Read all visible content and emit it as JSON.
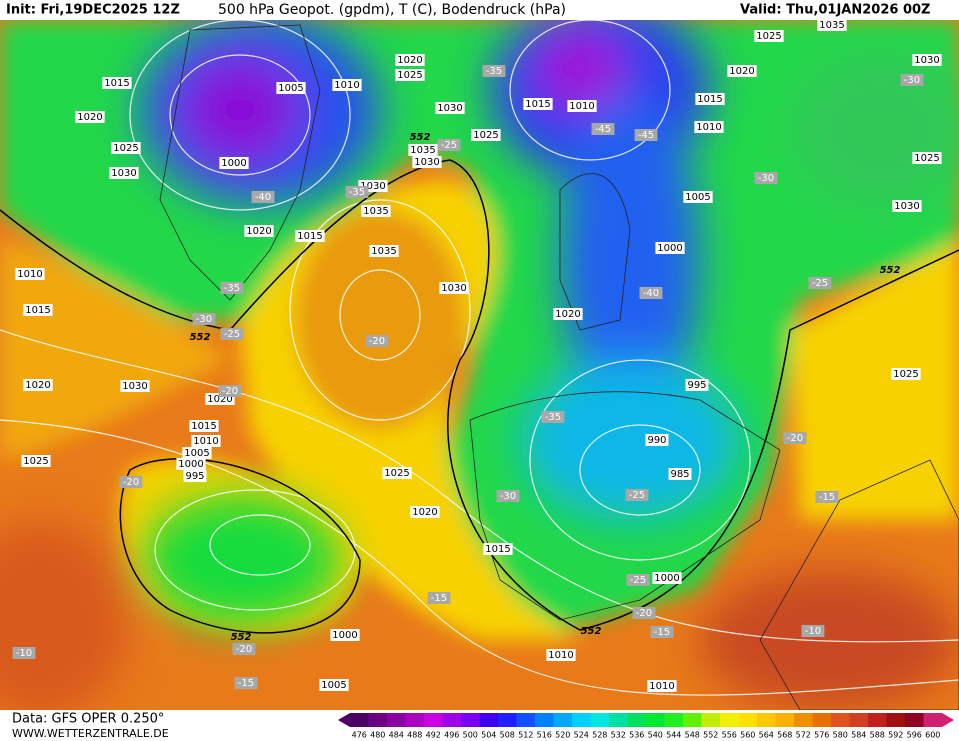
{
  "header": {
    "init": "Init: Fri,19DEC2025 12Z",
    "title": "500 hPa Geopot. (gpdm), T (C), Bodendruck (hPa)",
    "valid": "Valid: Thu,01JAN2026 00Z"
  },
  "footer": {
    "source": "Data: GFS OPER 0.250°",
    "website": "WWW.WETTERZENTRALE.DE"
  },
  "isobar_labels": [
    "1015",
    "1020",
    "1025",
    "1030",
    "1005",
    "1000",
    "1010",
    "1020",
    "1025",
    "1030",
    "1035",
    "1030",
    "1030",
    "1035",
    "1015",
    "1020",
    "1025",
    "1035",
    "1030",
    "1015",
    "1010",
    "1025",
    "1035",
    "1030",
    "1020",
    "1015",
    "1010",
    "1025",
    "1030",
    "1005",
    "1000",
    "1020",
    "995",
    "990",
    "985",
    "1025",
    "1010",
    "1015",
    "1020",
    "1030",
    "1020",
    "1015",
    "1010",
    "1005",
    "1000",
    "995",
    "1025",
    "1025",
    "1020",
    "1015",
    "1000",
    "1000",
    "1010",
    "1005",
    "1010"
  ],
  "temperature_labels": [
    "-35",
    "-45",
    "-45",
    "-40",
    "-35",
    "-30",
    "-25",
    "-20",
    "-20",
    "-30",
    "-30",
    "-25",
    "-40",
    "-35",
    "-30",
    "-20",
    "-25",
    "-25",
    "-20",
    "-15",
    "-15",
    "-20",
    "-15",
    "-10",
    "-10",
    "-20",
    "-15",
    "-35",
    "-25"
  ],
  "contour_552_labels": [
    "552",
    "552",
    "552",
    "552",
    "552"
  ],
  "color_scale": {
    "labels": [
      476,
      480,
      484,
      488,
      492,
      496,
      500,
      504,
      508,
      512,
      516,
      520,
      524,
      528,
      532,
      536,
      540,
      544,
      548,
      552,
      556,
      560,
      564,
      568,
      572,
      576,
      580,
      584,
      588,
      592,
      596,
      600
    ],
    "colors": [
      "#4b0066",
      "#6a0080",
      "#8a00a0",
      "#aa00c0",
      "#c800e0",
      "#a000e8",
      "#7a00f0",
      "#4000f0",
      "#2020ff",
      "#1050ff",
      "#0080ff",
      "#00a8ff",
      "#00d0ff",
      "#00e8e0",
      "#00e0a0",
      "#00e060",
      "#00e830",
      "#20f020",
      "#60f000",
      "#c0f000",
      "#f0f000",
      "#ffe000",
      "#ffc800",
      "#ffb000",
      "#f09000",
      "#e87000",
      "#e05020",
      "#d04020",
      "#c02020",
      "#a01010",
      "#900020",
      "#d02070"
    ]
  }
}
